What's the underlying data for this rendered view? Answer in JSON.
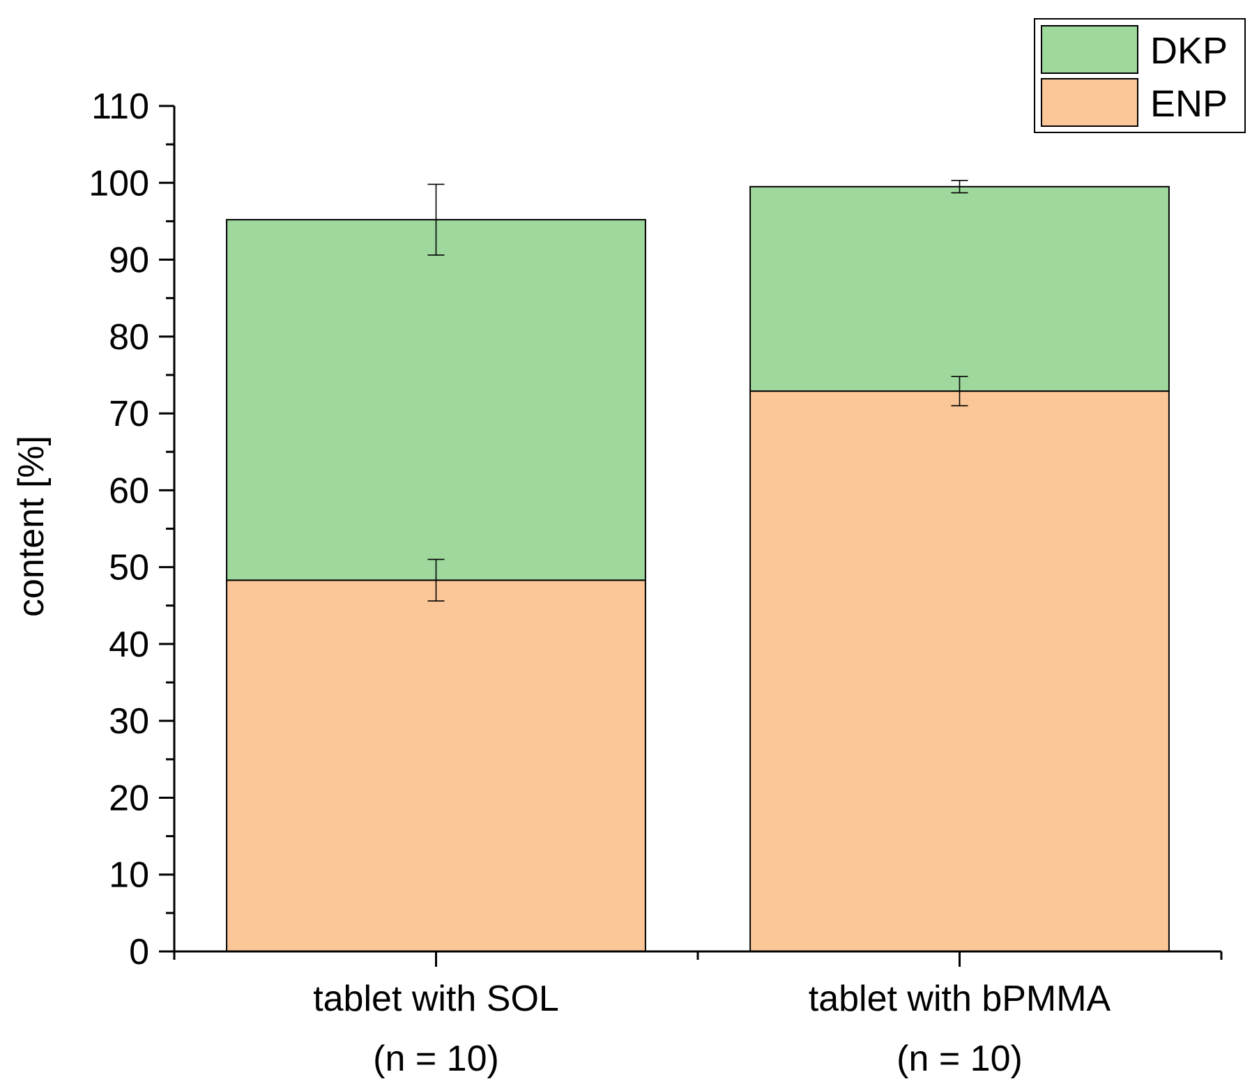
{
  "chart_data": {
    "type": "bar",
    "stacked": true,
    "categories": [
      [
        "tablet with SOL",
        "(n = 10)"
      ],
      [
        "tablet with bPMMA",
        "(n = 10)"
      ]
    ],
    "series": [
      {
        "name": "ENP",
        "color": "#fbc799",
        "values": [
          48.3,
          72.9
        ],
        "errors": [
          2.7,
          1.9
        ]
      },
      {
        "name": "DKP",
        "color": "#9fd89d",
        "values": [
          46.9,
          26.6
        ],
        "errors": [
          4.6,
          0.8
        ]
      }
    ],
    "ylabel": "content [%]",
    "xlabel": "",
    "ylim": [
      0,
      110
    ],
    "yticks": [
      0,
      10,
      20,
      30,
      40,
      50,
      60,
      70,
      80,
      90,
      100,
      110
    ],
    "grid": false,
    "legend": {
      "position": "top-right",
      "order": [
        "DKP",
        "ENP"
      ]
    }
  }
}
